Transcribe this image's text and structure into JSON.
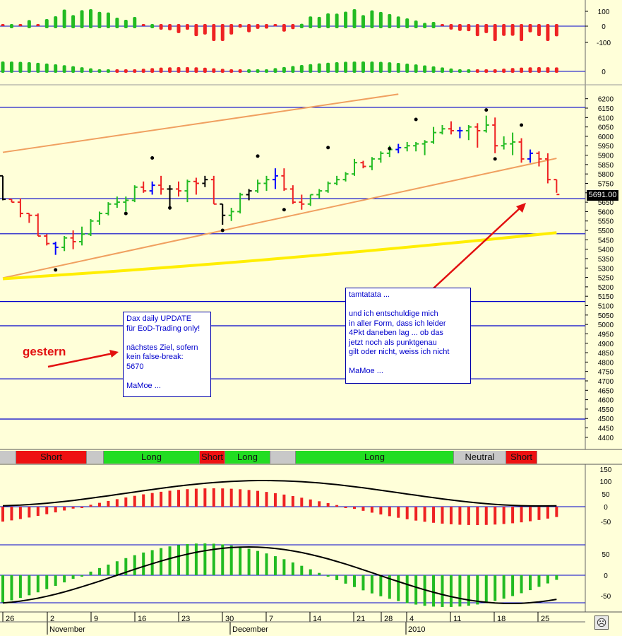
{
  "panels": {
    "top_osc": {
      "ticks": [
        "100",
        "0",
        "-100"
      ]
    },
    "mid_osc": {
      "ticks": [
        "0"
      ]
    },
    "price": {
      "ticks": [
        "6200",
        "6150",
        "6100",
        "6050",
        "6000",
        "5950",
        "5900",
        "5850",
        "5800",
        "5750",
        "5700",
        "5650",
        "5600",
        "5550",
        "5500",
        "5450",
        "5400",
        "5350",
        "5300",
        "5250",
        "5200",
        "5150",
        "5100",
        "5050",
        "5000",
        "4950",
        "4900",
        "4850",
        "4800",
        "4750",
        "4700",
        "4650",
        "4600",
        "4550",
        "4500",
        "4450",
        "4400"
      ],
      "last_price_label": "5691.00",
      "horizontal_levels": [
        6154,
        5669,
        5482,
        5122,
        4993,
        4711,
        4497
      ]
    },
    "lower_osc1": {
      "ticks": [
        "150",
        "100",
        "50",
        "0",
        "-50"
      ]
    },
    "lower_osc2": {
      "ticks": [
        "50",
        "0",
        "-50"
      ]
    }
  },
  "signal_bar": [
    {
      "label": "",
      "state": "none"
    },
    {
      "label": "Short",
      "state": "short"
    },
    {
      "label": "",
      "state": "none"
    },
    {
      "label": "Long",
      "state": "long"
    },
    {
      "label": "Short",
      "state": "short"
    },
    {
      "label": "Long",
      "state": "long"
    },
    {
      "label": "",
      "state": "none"
    },
    {
      "label": "Long",
      "state": "long"
    },
    {
      "label": "Neutral",
      "state": "neutral"
    },
    {
      "label": "Short",
      "state": "short"
    }
  ],
  "x_axis": {
    "day_labels": [
      "26",
      "2",
      "9",
      "16",
      "23",
      "30",
      "7",
      "14",
      "21",
      "28",
      "4",
      "11",
      "18",
      "25"
    ],
    "month_labels": [
      "November",
      "December",
      "2010"
    ]
  },
  "annotations": {
    "note1_lines": [
      "Dax daily UPDATE",
      "für EoD-Trading only!",
      "",
      "nächstes Ziel, sofern",
      "kein false-break:",
      "5670",
      "",
      "MaMoe ..."
    ],
    "note2_lines": [
      "tamtatata ...",
      "",
      "und ich entschuldige mich",
      "in aller Form, dass ich leider",
      "4Pkt daneben lag ... ob das",
      "jetzt noch als punktgenau",
      "gilt oder nicht, weiss ich nicht",
      "",
      "MaMoe ..."
    ],
    "gestern": "gestern"
  },
  "colors": {
    "background": "#ffffd9",
    "up": "#22bb22",
    "down": "#ee2222",
    "neutral": "#000000",
    "blue": "#0000ff",
    "long": "#22dd22",
    "short": "#ee1111",
    "neutral_bg": "#c8c8c8",
    "channel": "#f0a060",
    "average": "#ffee00"
  },
  "chart_data": {
    "type": "ohlc",
    "x": [
      "26",
      "27",
      "28",
      "29",
      "30",
      "2",
      "3",
      "4",
      "5",
      "6",
      "9",
      "10",
      "11",
      "12",
      "13",
      "16",
      "17",
      "18",
      "19",
      "20",
      "23",
      "24",
      "25",
      "26",
      "27",
      "30",
      "1",
      "2",
      "3",
      "4",
      "7",
      "8",
      "9",
      "10",
      "11",
      "14",
      "15",
      "16",
      "17",
      "18",
      "21",
      "22",
      "23",
      "24",
      "25",
      "28",
      "29",
      "30",
      "31",
      "4",
      "5",
      "6",
      "7",
      "8",
      "11",
      "12",
      "13",
      "14",
      "15",
      "18",
      "19",
      "20",
      "21",
      "22"
    ],
    "ohlc": [
      [
        5790,
        5790,
        5660,
        5665
      ],
      [
        5665,
        5665,
        5650,
        5650
      ],
      [
        5650,
        5670,
        5570,
        5590
      ],
      [
        5590,
        5590,
        5540,
        5580
      ],
      [
        5580,
        5590,
        5470,
        5470
      ],
      [
        5470,
        5480,
        5420,
        5430
      ],
      [
        5430,
        5440,
        5370,
        5410
      ],
      [
        5410,
        5470,
        5390,
        5460
      ],
      [
        5460,
        5500,
        5400,
        5440
      ],
      [
        5440,
        5520,
        5420,
        5480
      ],
      [
        5480,
        5560,
        5470,
        5550
      ],
      [
        5550,
        5600,
        5530,
        5590
      ],
      [
        5590,
        5650,
        5580,
        5640
      ],
      [
        5640,
        5680,
        5620,
        5650
      ],
      [
        5650,
        5680,
        5600,
        5660
      ],
      [
        5660,
        5740,
        5650,
        5730
      ],
      [
        5730,
        5760,
        5700,
        5710
      ],
      [
        5710,
        5760,
        5690,
        5740
      ],
      [
        5740,
        5790,
        5690,
        5720
      ],
      [
        5720,
        5740,
        5610,
        5720
      ],
      [
        5720,
        5760,
        5680,
        5710
      ],
      [
        5710,
        5770,
        5650,
        5760
      ],
      [
        5760,
        5780,
        5690,
        5750
      ],
      [
        5750,
        5790,
        5730,
        5770
      ],
      [
        5770,
        5790,
        5640,
        5640
      ],
      [
        5640,
        5640,
        5530,
        5580
      ],
      [
        5580,
        5620,
        5550,
        5600
      ],
      [
        5600,
        5700,
        5590,
        5690
      ],
      [
        5690,
        5720,
        5660,
        5710
      ],
      [
        5710,
        5770,
        5700,
        5750
      ],
      [
        5750,
        5790,
        5710,
        5770
      ],
      [
        5770,
        5830,
        5720,
        5790
      ],
      [
        5790,
        5830,
        5710,
        5720
      ],
      [
        5720,
        5740,
        5640,
        5650
      ],
      [
        5650,
        5690,
        5610,
        5640
      ],
      [
        5640,
        5690,
        5630,
        5690
      ],
      [
        5690,
        5720,
        5670,
        5710
      ],
      [
        5710,
        5760,
        5700,
        5750
      ],
      [
        5750,
        5790,
        5740,
        5770
      ],
      [
        5770,
        5810,
        5760,
        5800
      ],
      [
        5800,
        5880,
        5790,
        5860
      ],
      [
        5860,
        5870,
        5830,
        5840
      ],
      [
        5840,
        5890,
        5820,
        5880
      ],
      [
        5880,
        5920,
        5860,
        5910
      ],
      [
        5910,
        5950,
        5890,
        5930
      ],
      [
        5930,
        5960,
        5910,
        5940
      ],
      [
        5940,
        5970,
        5920,
        5950
      ],
      [
        5950,
        5970,
        5920,
        5960
      ],
      [
        5960,
        5980,
        5900,
        5970
      ],
      [
        5970,
        6050,
        5960,
        6020
      ],
      [
        6020,
        6060,
        6010,
        6040
      ],
      [
        6040,
        6080,
        6010,
        6030
      ],
      [
        6030,
        6050,
        5990,
        6030
      ],
      [
        6030,
        6060,
        5980,
        6050
      ],
      [
        6050,
        6070,
        5940,
        6030
      ],
      [
        6030,
        6110,
        6020,
        6060
      ],
      [
        6060,
        6100,
        5910,
        5950
      ],
      [
        5950,
        6000,
        5930,
        5960
      ],
      [
        5960,
        6020,
        5900,
        5970
      ],
      [
        5970,
        5990,
        5860,
        5880
      ],
      [
        5880,
        5930,
        5860,
        5910
      ],
      [
        5910,
        5920,
        5840,
        5880
      ],
      [
        5880,
        5910,
        5750,
        5770
      ],
      [
        5770,
        5770,
        5700,
        5691
      ]
    ],
    "channel_lines": [
      {
        "from": [
          0,
          5247
        ],
        "to": [
          63,
          5883
        ]
      },
      {
        "from": [
          0,
          5915
        ],
        "to": [
          45,
          6224
        ]
      }
    ],
    "moving_average": {
      "from": [
        0,
        5243
      ],
      "to": [
        63,
        5488
      ]
    },
    "ylim": [
      4400,
      6200
    ]
  }
}
